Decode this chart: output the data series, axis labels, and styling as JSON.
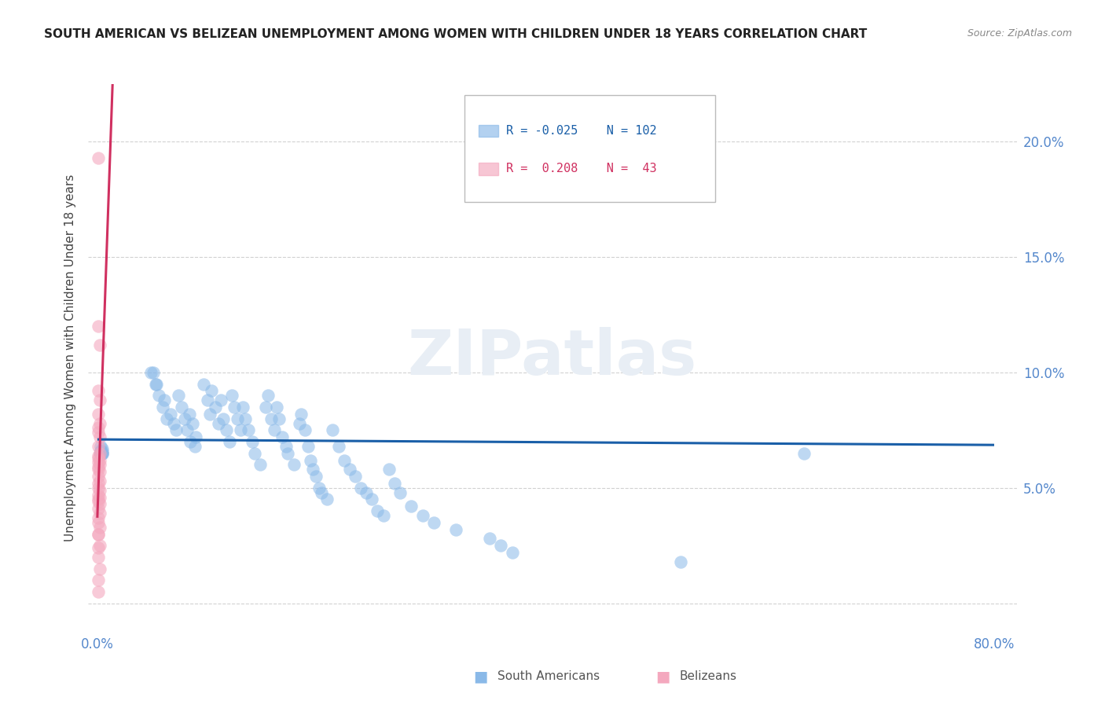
{
  "title": "SOUTH AMERICAN VS BELIZEAN UNEMPLOYMENT AMONG WOMEN WITH CHILDREN UNDER 18 YEARS CORRELATION CHART",
  "source": "Source: ZipAtlas.com",
  "ylabel": "Unemployment Among Women with Children Under 18 years",
  "xlim": [
    -0.008,
    0.82
  ],
  "ylim": [
    -0.012,
    0.225
  ],
  "blue_R": -0.025,
  "blue_N": 102,
  "pink_R": 0.208,
  "pink_N": 43,
  "blue_color": "#8ab9e8",
  "pink_color": "#f4a8be",
  "blue_line_color": "#1a5fa8",
  "pink_line_color": "#d03060",
  "watermark_color": "#e8eef5",
  "grid_color": "#cccccc",
  "tick_color": "#5588cc",
  "title_color": "#222222",
  "source_color": "#888888",
  "ylabel_color": "#444444",
  "blue_scatter_x": [
    0.003,
    0.004,
    0.003,
    0.004,
    0.003,
    0.004,
    0.003,
    0.003,
    0.004,
    0.003,
    0.003,
    0.003,
    0.004,
    0.003,
    0.003,
    0.003,
    0.003,
    0.003,
    0.003,
    0.003,
    0.05,
    0.052,
    0.055,
    0.048,
    0.053,
    0.058,
    0.062,
    0.06,
    0.065,
    0.068,
    0.07,
    0.075,
    0.072,
    0.078,
    0.08,
    0.082,
    0.085,
    0.088,
    0.083,
    0.087,
    0.095,
    0.098,
    0.1,
    0.102,
    0.105,
    0.108,
    0.11,
    0.112,
    0.115,
    0.118,
    0.12,
    0.122,
    0.125,
    0.128,
    0.13,
    0.132,
    0.135,
    0.138,
    0.14,
    0.145,
    0.15,
    0.152,
    0.155,
    0.158,
    0.16,
    0.162,
    0.165,
    0.168,
    0.17,
    0.175,
    0.18,
    0.182,
    0.185,
    0.188,
    0.19,
    0.192,
    0.195,
    0.198,
    0.2,
    0.205,
    0.21,
    0.215,
    0.22,
    0.225,
    0.23,
    0.235,
    0.24,
    0.245,
    0.25,
    0.255,
    0.26,
    0.265,
    0.27,
    0.28,
    0.29,
    0.3,
    0.32,
    0.35,
    0.36,
    0.37,
    0.52,
    0.63
  ],
  "blue_scatter_y": [
    0.068,
    0.066,
    0.065,
    0.067,
    0.066,
    0.065,
    0.065,
    0.066,
    0.065,
    0.065,
    0.066,
    0.065,
    0.065,
    0.065,
    0.065,
    0.065,
    0.065,
    0.065,
    0.065,
    0.065,
    0.1,
    0.095,
    0.09,
    0.1,
    0.095,
    0.085,
    0.08,
    0.088,
    0.082,
    0.078,
    0.075,
    0.085,
    0.09,
    0.08,
    0.075,
    0.082,
    0.078,
    0.072,
    0.07,
    0.068,
    0.095,
    0.088,
    0.082,
    0.092,
    0.085,
    0.078,
    0.088,
    0.08,
    0.075,
    0.07,
    0.09,
    0.085,
    0.08,
    0.075,
    0.085,
    0.08,
    0.075,
    0.07,
    0.065,
    0.06,
    0.085,
    0.09,
    0.08,
    0.075,
    0.085,
    0.08,
    0.072,
    0.068,
    0.065,
    0.06,
    0.078,
    0.082,
    0.075,
    0.068,
    0.062,
    0.058,
    0.055,
    0.05,
    0.048,
    0.045,
    0.075,
    0.068,
    0.062,
    0.058,
    0.055,
    0.05,
    0.048,
    0.045,
    0.04,
    0.038,
    0.058,
    0.052,
    0.048,
    0.042,
    0.038,
    0.035,
    0.032,
    0.028,
    0.025,
    0.022,
    0.018,
    0.065
  ],
  "pink_scatter_x": [
    0.001,
    0.001,
    0.002,
    0.001,
    0.002,
    0.001,
    0.002,
    0.001,
    0.001,
    0.002,
    0.001,
    0.002,
    0.001,
    0.001,
    0.002,
    0.001,
    0.002,
    0.001,
    0.001,
    0.002,
    0.001,
    0.002,
    0.001,
    0.001,
    0.002,
    0.001,
    0.002,
    0.001,
    0.001,
    0.002,
    0.001,
    0.002,
    0.001,
    0.001,
    0.002,
    0.001,
    0.002,
    0.001,
    0.001,
    0.002,
    0.001,
    0.001,
    0.001
  ],
  "pink_scatter_y": [
    0.193,
    0.12,
    0.112,
    0.092,
    0.088,
    0.082,
    0.078,
    0.076,
    0.074,
    0.072,
    0.068,
    0.065,
    0.064,
    0.063,
    0.062,
    0.061,
    0.06,
    0.059,
    0.058,
    0.057,
    0.055,
    0.053,
    0.052,
    0.05,
    0.049,
    0.047,
    0.046,
    0.045,
    0.044,
    0.043,
    0.041,
    0.039,
    0.037,
    0.035,
    0.033,
    0.03,
    0.025,
    0.024,
    0.02,
    0.015,
    0.01,
    0.005,
    0.03
  ],
  "blue_line_y_start": 0.071,
  "blue_line_y_end": 0.069,
  "pink_line_x_start": 0.0,
  "pink_line_x_end": 0.4
}
